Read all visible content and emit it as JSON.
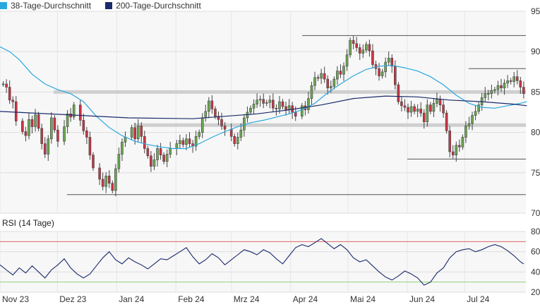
{
  "chart_data": [
    {
      "type": "candlestick",
      "legend": [
        {
          "label": "38-Tage-Durchschnitt",
          "color": "#29a8e0"
        },
        {
          "label": "200-Tage-Durchschnitt",
          "color": "#1a2a6c"
        }
      ],
      "ylim": [
        70,
        95
      ],
      "yticks": [
        70,
        75,
        80,
        85,
        90,
        95
      ],
      "xlabels": [
        {
          "label": "Nov 23",
          "day": 0
        },
        {
          "label": "Dez 23",
          "day": 30
        },
        {
          "label": "Jan 24",
          "day": 61
        },
        {
          "label": "Feb 24",
          "day": 92
        },
        {
          "label": "Mrz 24",
          "day": 121
        },
        {
          "label": "Apr 24",
          "day": 152
        },
        {
          "label": "Mai 24",
          "day": 182
        },
        {
          "label": "Jun 24",
          "day": 213
        },
        {
          "label": "Jul 24",
          "day": 243
        }
      ],
      "closes": [
        [
          1,
          86.0
        ],
        [
          2,
          85.6
        ],
        [
          3,
          84.0
        ],
        [
          4,
          83.8
        ],
        [
          5,
          81.4
        ],
        [
          7,
          80.1
        ],
        [
          8,
          79.6
        ],
        [
          9,
          81.6
        ],
        [
          10,
          80.7
        ],
        [
          11,
          82.2
        ],
        [
          12,
          80.5
        ],
        [
          13,
          78.6
        ],
        [
          14,
          77.3
        ],
        [
          15,
          79.2
        ],
        [
          16,
          81.8
        ],
        [
          17,
          80.3
        ],
        [
          18,
          78.9
        ],
        [
          20,
          80.7
        ],
        [
          21,
          82.3
        ],
        [
          22,
          81.9
        ],
        [
          23,
          83.4
        ],
        [
          25,
          81.5
        ],
        [
          26,
          80.2
        ],
        [
          27,
          79.4
        ],
        [
          28,
          77.2
        ],
        [
          29,
          75.6
        ],
        [
          31,
          74.2
        ],
        [
          32,
          73.3
        ],
        [
          33,
          74.6
        ],
        [
          34,
          73.7
        ],
        [
          35,
          72.8
        ],
        [
          36,
          75.5
        ],
        [
          37,
          77.3
        ],
        [
          38,
          78.8
        ],
        [
          39,
          79.4
        ],
        [
          41,
          80.6
        ],
        [
          42,
          79.2
        ],
        [
          43,
          80.8
        ],
        [
          44,
          79.5
        ],
        [
          45,
          78.0
        ],
        [
          46,
          77.1
        ],
        [
          47,
          75.8
        ],
        [
          48,
          76.6
        ],
        [
          49,
          78.0
        ],
        [
          50,
          77.2
        ],
        [
          51,
          76.4
        ],
        [
          52,
          77.3
        ],
        [
          53,
          78.0
        ],
        [
          55,
          78.6
        ],
        [
          56,
          79.0
        ],
        [
          57,
          78.5
        ],
        [
          58,
          79.2
        ],
        [
          59,
          78.6
        ],
        [
          60,
          78.3
        ],
        [
          61,
          79.5
        ],
        [
          62,
          80.0
        ],
        [
          63,
          81.8
        ],
        [
          64,
          82.6
        ],
        [
          65,
          83.9
        ],
        [
          66,
          82.9
        ],
        [
          67,
          82.0
        ],
        [
          68,
          81.6
        ],
        [
          69,
          80.8
        ],
        [
          70,
          80.4
        ],
        [
          72,
          79.5
        ],
        [
          73,
          78.6
        ],
        [
          74,
          79.4
        ],
        [
          75,
          80.3
        ],
        [
          76,
          81.8
        ],
        [
          77,
          82.5
        ],
        [
          78,
          83.0
        ],
        [
          79,
          83.5
        ],
        [
          80,
          84.0
        ],
        [
          81,
          84.1
        ],
        [
          82,
          83.6
        ],
        [
          83,
          83.7
        ],
        [
          84,
          84.0
        ],
        [
          85,
          83.0
        ],
        [
          86,
          82.9
        ],
        [
          87,
          83.8
        ],
        [
          88,
          83.2
        ],
        [
          89,
          82.8
        ],
        [
          90,
          83.3
        ],
        [
          91,
          82.5
        ],
        [
          92,
          82.0
        ],
        [
          94,
          83.3
        ],
        [
          95,
          82.8
        ],
        [
          96,
          84.2
        ],
        [
          97,
          85.8
        ],
        [
          98,
          86.8
        ],
        [
          99,
          86.7
        ],
        [
          100,
          87.3
        ],
        [
          101,
          86.6
        ],
        [
          102,
          85.5
        ],
        [
          103,
          85.7
        ],
        [
          104,
          86.6
        ],
        [
          105,
          87.6
        ],
        [
          106,
          87.2
        ],
        [
          107,
          88.2
        ],
        [
          108,
          89.6
        ],
        [
          109,
          91.4
        ],
        [
          110,
          91.0
        ],
        [
          111,
          90.5
        ],
        [
          112,
          89.8
        ],
        [
          113,
          90.2
        ],
        [
          114,
          90.9
        ],
        [
          115,
          90.1
        ],
        [
          116,
          88.4
        ],
        [
          117,
          87.9
        ],
        [
          118,
          87.0
        ],
        [
          119,
          87.5
        ],
        [
          120,
          88.7
        ],
        [
          121,
          89.2
        ],
        [
          122,
          88.2
        ],
        [
          123,
          85.9
        ],
        [
          124,
          83.8
        ],
        [
          125,
          83.3
        ],
        [
          126,
          83.1
        ],
        [
          127,
          82.5
        ],
        [
          128,
          83.2
        ],
        [
          129,
          82.6
        ],
        [
          130,
          82.9
        ],
        [
          131,
          82.4
        ],
        [
          132,
          81.3
        ],
        [
          133,
          83.4
        ],
        [
          134,
          82.6
        ],
        [
          135,
          83.6
        ],
        [
          136,
          84.1
        ],
        [
          137,
          83.4
        ],
        [
          138,
          82.4
        ],
        [
          139,
          80.2
        ],
        [
          140,
          77.6
        ],
        [
          141,
          77.2
        ],
        [
          142,
          78.4
        ],
        [
          143,
          78.2
        ],
        [
          144,
          79.4
        ],
        [
          145,
          80.8
        ],
        [
          146,
          81.1
        ],
        [
          147,
          82.1
        ],
        [
          148,
          82.6
        ],
        [
          149,
          83.4
        ],
        [
          150,
          84.3
        ],
        [
          151,
          84.8
        ],
        [
          152,
          84.8
        ],
        [
          153,
          85.2
        ],
        [
          154,
          85.3
        ],
        [
          155,
          85.8
        ],
        [
          156,
          85.5
        ],
        [
          157,
          86.1
        ],
        [
          158,
          86.4
        ],
        [
          159,
          86.3
        ],
        [
          160,
          86.9
        ],
        [
          161,
          86.4
        ],
        [
          162,
          85.6
        ],
        [
          163,
          84.8
        ]
      ],
      "ma38": [
        [
          0,
          90.6
        ],
        [
          3,
          90.0
        ],
        [
          6,
          89.0
        ],
        [
          10,
          87.2
        ],
        [
          14,
          86.0
        ],
        [
          18,
          85.3
        ],
        [
          22,
          84.8
        ],
        [
          26,
          83.8
        ],
        [
          30,
          82.0
        ],
        [
          34,
          80.6
        ],
        [
          38,
          79.6
        ],
        [
          42,
          78.9
        ],
        [
          46,
          78.5
        ],
        [
          50,
          78.2
        ],
        [
          54,
          78.0
        ],
        [
          58,
          78.0
        ],
        [
          62,
          78.6
        ],
        [
          66,
          79.4
        ],
        [
          70,
          80.1
        ],
        [
          74,
          80.7
        ],
        [
          78,
          81.2
        ],
        [
          82,
          81.5
        ],
        [
          86,
          81.9
        ],
        [
          90,
          82.3
        ],
        [
          94,
          82.8
        ],
        [
          98,
          83.6
        ],
        [
          102,
          84.9
        ],
        [
          106,
          86.0
        ],
        [
          110,
          87.0
        ],
        [
          114,
          87.8
        ],
        [
          118,
          88.2
        ],
        [
          122,
          88.3
        ],
        [
          126,
          88.0
        ],
        [
          130,
          87.6
        ],
        [
          134,
          86.9
        ],
        [
          138,
          85.9
        ],
        [
          142,
          84.6
        ],
        [
          146,
          83.6
        ],
        [
          150,
          83.1
        ],
        [
          154,
          83.0
        ],
        [
          158,
          83.3
        ],
        [
          162,
          83.6
        ],
        [
          164,
          83.8
        ]
      ],
      "ma200": [
        [
          0,
          82.6
        ],
        [
          20,
          82.2
        ],
        [
          40,
          81.8
        ],
        [
          60,
          81.7
        ],
        [
          80,
          82.3
        ],
        [
          90,
          82.8
        ],
        [
          100,
          83.4
        ],
        [
          110,
          84.2
        ],
        [
          120,
          84.5
        ],
        [
          130,
          84.4
        ],
        [
          140,
          84.0
        ],
        [
          150,
          83.8
        ],
        [
          160,
          83.5
        ],
        [
          164,
          83.3
        ]
      ]
    },
    {
      "type": "line",
      "title": "RSI (14 Tage)",
      "ylim": [
        20,
        80
      ],
      "yticks": [
        20,
        40,
        60,
        80
      ],
      "upper_band": 70,
      "lower_band": 30,
      "values": [
        [
          0,
          47
        ],
        [
          2,
          42
        ],
        [
          4,
          37
        ],
        [
          6,
          44
        ],
        [
          8,
          39
        ],
        [
          10,
          46
        ],
        [
          12,
          40
        ],
        [
          14,
          34
        ],
        [
          16,
          42
        ],
        [
          18,
          47
        ],
        [
          20,
          53
        ],
        [
          22,
          44
        ],
        [
          24,
          38
        ],
        [
          26,
          34
        ],
        [
          28,
          38
        ],
        [
          30,
          46
        ],
        [
          32,
          54
        ],
        [
          34,
          60
        ],
        [
          36,
          52
        ],
        [
          38,
          48
        ],
        [
          40,
          54
        ],
        [
          42,
          50
        ],
        [
          44,
          47
        ],
        [
          46,
          43
        ],
        [
          48,
          48
        ],
        [
          50,
          53
        ],
        [
          52,
          52
        ],
        [
          54,
          56
        ],
        [
          56,
          60
        ],
        [
          58,
          64
        ],
        [
          60,
          55
        ],
        [
          62,
          48
        ],
        [
          64,
          52
        ],
        [
          66,
          58
        ],
        [
          68,
          54
        ],
        [
          70,
          47
        ],
        [
          72,
          52
        ],
        [
          74,
          57
        ],
        [
          76,
          62
        ],
        [
          78,
          60
        ],
        [
          80,
          57
        ],
        [
          82,
          62
        ],
        [
          84,
          59
        ],
        [
          86,
          53
        ],
        [
          88,
          48
        ],
        [
          90,
          56
        ],
        [
          92,
          64
        ],
        [
          94,
          67
        ],
        [
          96,
          65
        ],
        [
          98,
          69
        ],
        [
          100,
          73
        ],
        [
          102,
          68
        ],
        [
          104,
          63
        ],
        [
          106,
          67
        ],
        [
          108,
          62
        ],
        [
          110,
          54
        ],
        [
          112,
          50
        ],
        [
          114,
          52
        ],
        [
          116,
          46
        ],
        [
          118,
          40
        ],
        [
          120,
          35
        ],
        [
          122,
          32
        ],
        [
          124,
          36
        ],
        [
          126,
          41
        ],
        [
          128,
          38
        ],
        [
          130,
          34
        ],
        [
          132,
          27
        ],
        [
          134,
          30
        ],
        [
          136,
          39
        ],
        [
          138,
          44
        ],
        [
          140,
          54
        ],
        [
          142,
          60
        ],
        [
          144,
          62
        ],
        [
          146,
          63
        ],
        [
          148,
          60
        ],
        [
          150,
          62
        ],
        [
          152,
          65
        ],
        [
          154,
          67
        ],
        [
          156,
          65
        ],
        [
          158,
          61
        ],
        [
          160,
          56
        ],
        [
          162,
          50
        ],
        [
          163,
          48
        ]
      ]
    }
  ]
}
